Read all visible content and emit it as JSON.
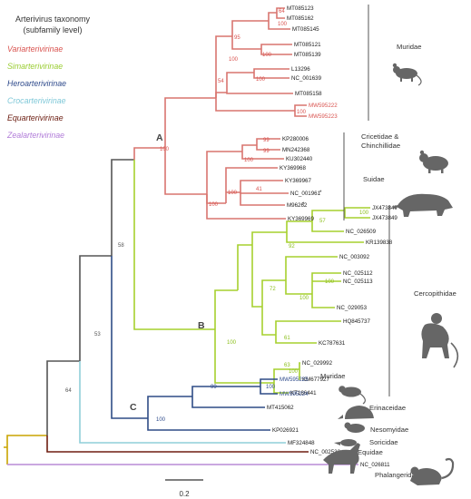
{
  "legend": {
    "title_line1": "Arterivirus taxonomy",
    "title_line2": "(subfamily level)",
    "subfamilies": [
      {
        "name": "Variarterivirinae",
        "color": "#d9534f"
      },
      {
        "name": "Simarterivirinae",
        "color": "#9acd32"
      },
      {
        "name": "Heroarterivirinae",
        "color": "#2e4a8b"
      },
      {
        "name": "Crocarterivirinae",
        "color": "#7fc8d8"
      },
      {
        "name": "Equarterivirinae",
        "color": "#6b1c10"
      },
      {
        "name": "Zealarterivirinae",
        "color": "#b07bd8"
      }
    ]
  },
  "branch_colors": {
    "variarterivirinae": "#d9756f",
    "simarterivirinae": "#a6d02e",
    "heroarterivirinae": "#2f4c86",
    "crocarterivirinae": "#8fcfd9",
    "equarterivirinae": "#6e1d10",
    "zealarterivirinae": "#b98bd6",
    "backbone": "#555555",
    "root": "#c9a400"
  },
  "clades": {
    "a": "A",
    "b": "B",
    "c": "C"
  },
  "tips": {
    "mt085123": "MT085123",
    "mt085162": "MT085162",
    "mt085145": "MT085145",
    "mt085121": "MT085121",
    "mt085139": "MT085139",
    "l13296": "L13296",
    "nc_001639": "NC_001639",
    "mt085158": "MT085158",
    "mw595222": "MW595222",
    "mw595223": "MW595223",
    "kp280006": "KP280006",
    "mn242368": "MN242368",
    "ku302440": "KU302440",
    "ky369968": "KY369968",
    "ky369967": "KY369967",
    "nc_001961": "NC_001961",
    "m96262": "M96262",
    "ky369969": "KY369969",
    "jx473847": "JX473847",
    "jx473849": "JX473849",
    "nc_026509": "NC_026509",
    "kr139838": "KR139838",
    "nc_003092": "NC_003092",
    "nc_025112": "NC_025112",
    "nc_025113": "NC_025113",
    "nc_029053": "NC_029053",
    "hq845737": "HQ845737",
    "kc787631": "KC787631",
    "nc_029992": "NC_029992",
    "km677927": "KM677927",
    "kt166441": "KT166441",
    "mw595225": "MW595225",
    "mw595224": "MW595224",
    "mt415062": "MT415062",
    "kp026921": "KP026921",
    "mf324848": "MF324848",
    "nc_002532": "NC_002532",
    "nc_026811": "NC_026811"
  },
  "asterisk": "*",
  "bootstrap": {
    "b_mt085123_162": "64",
    "b_mt085123_162_145": "100",
    "b_mt085121_139": "100",
    "b_upper_muridae": "95",
    "b_l13296_nc001639": "100",
    "b_muridae_core": "100",
    "b_muridae_all": "54",
    "b_mw5952": "100",
    "b_kp_mn": "99",
    "b_kp_mn_ku": "99",
    "b_cricetidae": "100",
    "b_ky967_nc961": "41",
    "b_suidae": "100",
    "b_cric_suid": "100",
    "b_clade_a": "100",
    "b_jx": "100",
    "b_jx_nc026509": "57",
    "b_jx_kr": "92",
    "b_nc025112_113": "100",
    "b_nc025_029053": "100",
    "b_upper_b": "72",
    "b_hq_kc": "61",
    "b_b_upper": "100",
    "b_nc029992_km": "63",
    "b_lower_b": "100",
    "b_clade_b": "100",
    "b_ab": "58",
    "b_abc": "53",
    "b_mw5952_c": "100",
    "b_mw_mt": "99",
    "b_clade_c": "100",
    "b_deep": "64"
  },
  "hosts": {
    "muridae_top": "Muridae",
    "cricetidae_line1": "Cricetidae &",
    "cricetidae_line2": "Chinchillidae",
    "suidae": "Suidae",
    "cercopithidae": "Cercopithidae",
    "muridae_c": "Muridae",
    "erinaceidae": "Erinaceidae",
    "nesomyidae": "Nesomyidae",
    "soricidae": "Soricidae",
    "equidae": "Equidae",
    "phalangeridae": "Phalangeridae"
  },
  "scale_bar": {
    "label": "0.2"
  }
}
